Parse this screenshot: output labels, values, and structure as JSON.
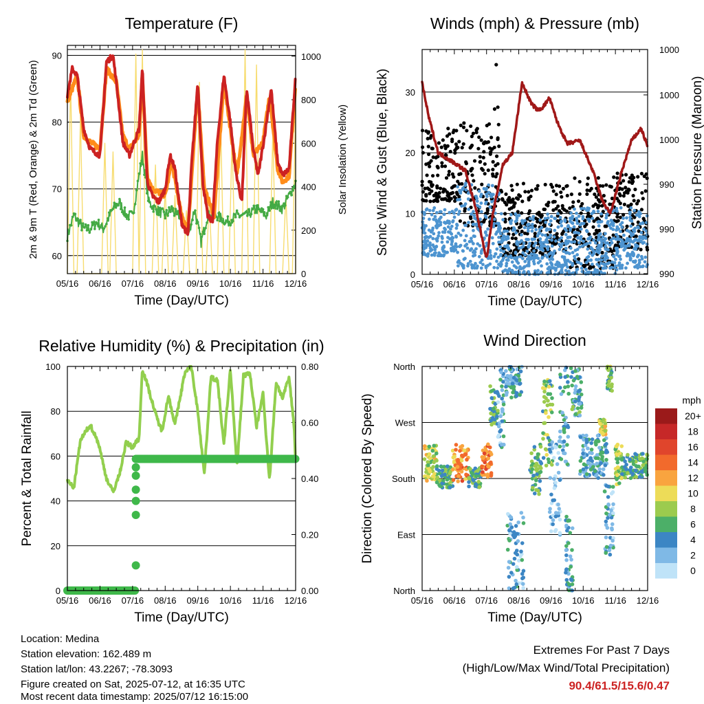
{
  "x_tick_labels": [
    "05/16",
    "06/16",
    "07/16",
    "08/16",
    "09/16",
    "10/16",
    "11/16",
    "12/16"
  ],
  "x_axis_label": "Time (Day/UTC)",
  "info": {
    "location": "Location: Medina",
    "elevation": "Station elevation: 162.489 m",
    "latlon": "Station lat/lon: 43.2267; -78.3093",
    "created": "Figure created on Sat, 2025-07-12, at 16:35 UTC",
    "recent": "Most recent data timestamp: 2025/07/12 16:15:00"
  },
  "extremes": {
    "title": "Extremes For Past 7 Days",
    "subtitle": "(High/Low/Max Wind/Total Precipitation)",
    "values": "90.4/61.5/15.6/0.47"
  },
  "colors": {
    "temp_2m": "#cc2222",
    "temp_9m": "#ff8c1a",
    "dewpoint": "#44aa44",
    "solar": "#f7dc6f",
    "wind": "#4d94d0",
    "gust": "#000000",
    "pressure": "#a01818",
    "rh": "#92cf4e",
    "precip": "#3fb84a"
  },
  "chart_data": [
    {
      "type": "line",
      "title": "Temperature (F)",
      "xlabel": "Time (Day/UTC)",
      "ylabel": "2m & 9m T (Red, Orange) & 2m Td (Green)",
      "y2label": "Solar Insolation (Yellow)",
      "x_ticks": [
        "05/16",
        "06/16",
        "07/16",
        "08/16",
        "09/16",
        "10/16",
        "11/16",
        "12/16"
      ],
      "ylim": [
        57.3,
        91.5
      ],
      "yticks": [
        60,
        70,
        80,
        90
      ],
      "y2lim": [
        0,
        1050
      ],
      "y2ticks": [
        0,
        200,
        400,
        600,
        800,
        1000
      ],
      "grid": "horizontal",
      "series": [
        {
          "name": "2m T",
          "axis": "left",
          "color_key": "temp_2m",
          "x": [
            0,
            0.15,
            0.3,
            0.5,
            0.7,
            1.0,
            1.2,
            1.4,
            1.5,
            1.7,
            1.9,
            2.05,
            2.2,
            2.3,
            2.45,
            2.6,
            2.8,
            3.0,
            3.15,
            3.3,
            3.5,
            3.7,
            3.8,
            4.0,
            4.15,
            4.3,
            4.45,
            4.6,
            4.8,
            5.0,
            5.15,
            5.35,
            5.5,
            5.7,
            5.85,
            6.05,
            6.25,
            6.45,
            6.6,
            6.8,
            7.0
          ],
          "y": [
            84,
            88,
            87,
            79,
            76,
            75,
            89,
            90,
            86,
            77,
            75,
            77,
            79,
            88,
            71,
            69,
            68,
            70,
            75,
            73,
            65,
            63,
            73,
            86,
            71,
            66,
            65,
            77,
            87,
            80,
            73,
            68,
            85,
            76,
            72,
            78,
            85,
            74,
            72,
            73,
            87
          ]
        },
        {
          "name": "9m T",
          "axis": "left",
          "color_key": "temp_9m",
          "x": [
            0,
            0.3,
            0.5,
            0.7,
            1.0,
            1.2,
            1.5,
            1.7,
            1.9,
            2.2,
            2.3,
            2.45,
            2.6,
            3.0,
            3.2,
            3.5,
            3.7,
            4.0,
            4.2,
            4.5,
            4.8,
            5.0,
            5.2,
            5.5,
            5.7,
            6.0,
            6.2,
            6.45,
            6.6,
            6.8,
            7.0
          ],
          "y": [
            83,
            87,
            78,
            77,
            76,
            88,
            86,
            78,
            76,
            78,
            87,
            72,
            70,
            69,
            74,
            66,
            64,
            85,
            70,
            66,
            86,
            79,
            72,
            84,
            75,
            77,
            84,
            73,
            71,
            72,
            86
          ]
        },
        {
          "name": "2m Td",
          "axis": "left",
          "color_key": "dewpoint",
          "x": [
            0,
            0.2,
            0.5,
            0.7,
            0.9,
            1.1,
            1.4,
            1.6,
            1.8,
            2.0,
            2.3,
            2.5,
            2.7,
            3.0,
            3.2,
            3.35,
            3.5,
            3.7,
            3.9,
            4.1,
            4.3,
            4.6,
            4.9,
            5.2,
            5.5,
            5.8,
            6.1,
            6.3,
            6.6,
            6.8,
            7.0
          ],
          "y": [
            63,
            66,
            64,
            64,
            65,
            64,
            67,
            68,
            66,
            66,
            75,
            68,
            67,
            66,
            67,
            66,
            66,
            63,
            67,
            62,
            66,
            66,
            65,
            66,
            66,
            67,
            66,
            68,
            67,
            69,
            71
          ]
        },
        {
          "name": "Solar",
          "axis": "right",
          "color_key": "solar",
          "peaks_x": [
            0.1,
            0.4,
            1.15,
            1.4,
            2.1,
            2.3,
            2.7,
            3.0,
            3.3,
            3.65,
            4.05,
            4.35,
            4.7,
            5.05,
            5.45,
            5.8,
            6.3,
            6.7,
            7.0
          ],
          "peaks_y": [
            900,
            720,
            600,
            560,
            1010,
            1030,
            500,
            400,
            360,
            290,
            880,
            330,
            700,
            620,
            1030,
            960,
            650,
            360,
            800
          ]
        }
      ]
    },
    {
      "type": "scatter",
      "title": "Winds (mph) & Pressure (mb)",
      "xlabel": "Time (Day/UTC)",
      "ylabel": "Sonic Wind & Gust (Blue, Black)",
      "y2label": "Station Pressure (Maroon)",
      "x_ticks": [
        "05/16",
        "06/16",
        "07/16",
        "08/16",
        "09/16",
        "10/16",
        "11/16",
        "12/16"
      ],
      "ylim": [
        0,
        37
      ],
      "yticks": [
        0,
        10,
        20,
        30
      ],
      "y2_tick_labels": [
        "990",
        "990",
        "990",
        "990",
        "1000",
        "1000",
        "1000"
      ],
      "grid": "horizontal",
      "series": [
        {
          "name": "Pressure",
          "axis": "right",
          "color_key": "pressure",
          "x": [
            0,
            0.2,
            0.5,
            0.8,
            1.1,
            1.35,
            1.7,
            2.0,
            2.2,
            2.5,
            2.8,
            3.1,
            3.4,
            3.6,
            3.75,
            3.95,
            4.2,
            4.5,
            4.9,
            5.3,
            5.6,
            5.85,
            6.2,
            6.5,
            6.8,
            7.0
          ],
          "y": [
            31.5,
            26,
            20,
            19,
            18,
            17,
            10,
            2.5,
            10,
            18,
            20,
            31.5,
            28,
            27,
            27.5,
            29,
            25,
            21.5,
            22,
            17,
            12,
            10,
            17,
            22,
            24,
            21
          ]
        },
        {
          "name": "Gust",
          "axis": "left",
          "color_key": "gust",
          "bands": [
            [
              0,
              1.1,
              12,
              24
            ],
            [
              1.1,
              2.4,
              8,
              25
            ],
            [
              2.4,
              4.6,
              3,
              15
            ],
            [
              4.6,
              6.05,
              1,
              16
            ],
            [
              6.05,
              7.0,
              4,
              17
            ]
          ],
          "outliers": [
            [
              2.3,
              34.5
            ],
            [
              2.25,
              27.2
            ],
            [
              2.35,
              27.5
            ]
          ]
        },
        {
          "name": "Wind",
          "axis": "left",
          "color_key": "wind",
          "bands": [
            [
              0,
              1.1,
              3,
              11
            ],
            [
              1.1,
              2.4,
              1,
              15
            ],
            [
              2.4,
              4.6,
              0,
              10
            ],
            [
              4.6,
              6.05,
              0,
              11
            ],
            [
              6.05,
              7.0,
              1,
              11
            ]
          ]
        }
      ]
    },
    {
      "type": "line",
      "title": "Relative Humidity (%) & Precipitation (in)",
      "xlabel": "Time (Day/UTC)",
      "ylabel": "Percent & Total Rainfall",
      "ylim": [
        0,
        100
      ],
      "yticks": [
        0,
        20,
        40,
        60,
        80,
        100
      ],
      "y2lim": [
        0,
        0.8
      ],
      "y2ticks": [
        "0.00",
        "0.20",
        "0.40",
        "0.60",
        "0.80"
      ],
      "x_ticks": [
        "05/16",
        "06/16",
        "07/16",
        "08/16",
        "09/16",
        "10/16",
        "11/16",
        "12/16"
      ],
      "grid": "horizontal",
      "series": [
        {
          "name": "RH",
          "axis": "left",
          "color_key": "rh",
          "x": [
            0,
            0.2,
            0.4,
            0.7,
            0.95,
            1.2,
            1.4,
            1.6,
            1.8,
            2.0,
            2.2,
            2.3,
            2.45,
            2.7,
            2.9,
            3.1,
            3.3,
            3.6,
            3.8,
            4.0,
            4.2,
            4.4,
            4.6,
            4.8,
            5.0,
            5.2,
            5.4,
            5.6,
            5.8,
            6.0,
            6.2,
            6.4,
            6.6,
            6.8,
            6.95,
            7.0
          ],
          "y": [
            49,
            46,
            67,
            74,
            66,
            50,
            44,
            52,
            66,
            64,
            68,
            99,
            92,
            79,
            71,
            87,
            74,
            97,
            100,
            80,
            52,
            95,
            94,
            65,
            99,
            55,
            96,
            97,
            73,
            88,
            49,
            93,
            86,
            95,
            74,
            58
          ]
        },
        {
          "name": "Total Precipitation",
          "axis": "right",
          "color_key": "precip",
          "x": [
            0,
            2.1,
            2.1,
            2.1,
            2.1,
            2.1,
            2.1,
            2.1,
            2.1,
            7.0
          ],
          "y": [
            0,
            0,
            0.09,
            0.27,
            0.32,
            0.36,
            0.41,
            0.44,
            0.47,
            0.47
          ]
        }
      ]
    },
    {
      "type": "scatter",
      "title": "Wind Direction",
      "xlabel": "Time (Day/UTC)",
      "ylabel": "Direction (Colored By Speed)",
      "x_ticks": [
        "05/16",
        "06/16",
        "07/16",
        "08/16",
        "09/16",
        "10/16",
        "11/16",
        "12/16"
      ],
      "ylim": [
        0,
        360
      ],
      "ytick_labels": [
        "North",
        "East",
        "South",
        "West",
        "North"
      ],
      "yticks": [
        0,
        90,
        180,
        270,
        360
      ],
      "colorbar": {
        "title": "mph",
        "labels": [
          "20+",
          "18",
          "16",
          "14",
          "12",
          "10",
          "8",
          "6",
          "4",
          "2",
          "0"
        ],
        "colors": [
          "#9b1a1a",
          "#c62828",
          "#e0452c",
          "#f26a2c",
          "#f9a43f",
          "#eddc58",
          "#9ccb4e",
          "#4caf68",
          "#3c86c4",
          "#7fb9e6",
          "#bfe3f8"
        ]
      },
      "clusters": [
        [
          0.05,
          0.45,
          175,
          235,
          9
        ],
        [
          0.45,
          0.95,
          165,
          200,
          6
        ],
        [
          0.95,
          1.45,
          175,
          235,
          13
        ],
        [
          1.45,
          1.85,
          165,
          200,
          6
        ],
        [
          1.85,
          2.15,
          180,
          235,
          14
        ],
        [
          2.1,
          2.35,
          265,
          330,
          6
        ],
        [
          2.35,
          2.55,
          230,
          360,
          3
        ],
        [
          2.6,
          3.1,
          310,
          360,
          4
        ],
        [
          2.65,
          3.15,
          0,
          130,
          3
        ],
        [
          3.35,
          3.7,
          155,
          235,
          6
        ],
        [
          3.75,
          4.05,
          200,
          340,
          7
        ],
        [
          3.95,
          4.3,
          80,
          240,
          2
        ],
        [
          4.25,
          4.55,
          200,
          360,
          4
        ],
        [
          4.45,
          4.7,
          0,
          120,
          4
        ],
        [
          4.6,
          4.95,
          280,
          360,
          5
        ],
        [
          4.9,
          5.3,
          180,
          250,
          4
        ],
        [
          5.3,
          5.75,
          180,
          250,
          4
        ],
        [
          5.5,
          5.7,
          250,
          275,
          9
        ],
        [
          5.75,
          5.9,
          320,
          360,
          7
        ],
        [
          5.65,
          5.95,
          50,
          170,
          3
        ],
        [
          6.0,
          6.2,
          170,
          235,
          8
        ],
        [
          6.2,
          7.0,
          180,
          220,
          6
        ]
      ]
    }
  ]
}
